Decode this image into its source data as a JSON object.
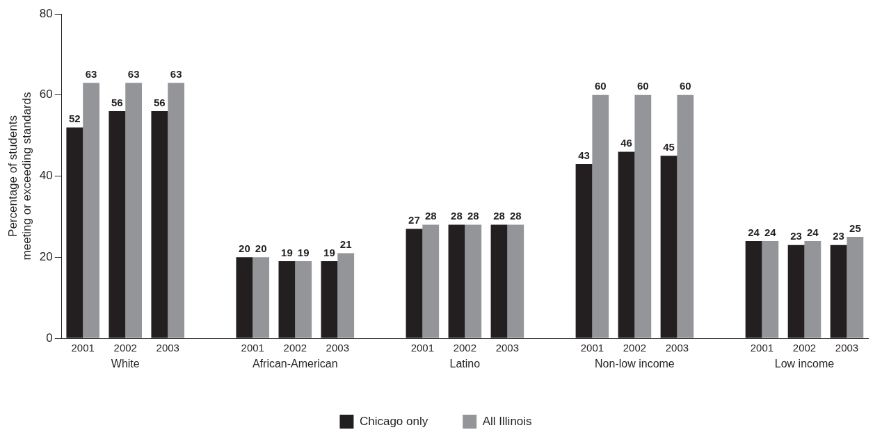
{
  "chart_data": {
    "type": "bar",
    "ylabel": "Percentage of students meeting or exceeding standards",
    "categories": [
      "2001",
      "2002",
      "2003",
      null,
      "2001",
      "2002",
      "2003",
      null,
      "2001",
      "2002",
      "2003",
      null,
      "2001",
      "2002",
      "2003",
      null,
      "2001",
      "2002",
      "2003"
    ],
    "series": [
      {
        "name": "Chicago only",
        "color": "#231f20",
        "values": [
          52,
          56,
          56,
          null,
          20,
          19,
          19,
          null,
          27,
          28,
          28,
          null,
          43,
          46,
          45,
          null,
          24,
          23,
          23
        ]
      },
      {
        "name": "All Illinois",
        "color": "#939598",
        "values": [
          63,
          63,
          63,
          null,
          20,
          19,
          21,
          null,
          28,
          28,
          28,
          null,
          60,
          60,
          60,
          null,
          24,
          24,
          25
        ]
      }
    ],
    "annotations": [
      "White",
      "African-American",
      "Latino",
      "Non-low income",
      "Low income"
    ],
    "ylim": [
      0,
      80
    ],
    "yticks": [
      0,
      20,
      40,
      60,
      80
    ],
    "data_labels": true,
    "grid": false,
    "legend": "bottom"
  }
}
